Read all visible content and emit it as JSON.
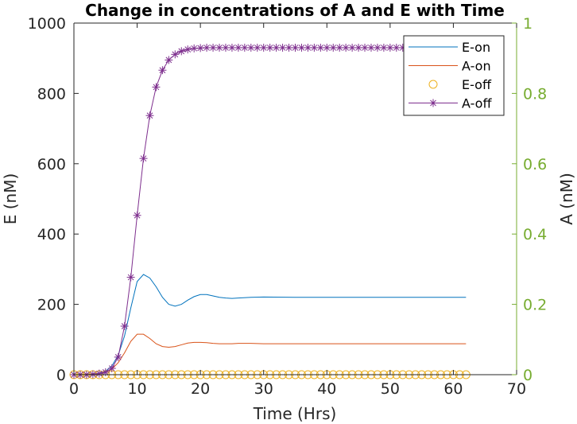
{
  "chart_data": {
    "type": "line",
    "title": "Change in concentrations of A and E with Time",
    "xlabel": "Time (Hrs)",
    "ylabel_left": "E (nM)",
    "ylabel_right": "A (nM)",
    "xlim": [
      0,
      70
    ],
    "ylim_left": [
      0,
      1000
    ],
    "ylim_right": [
      0,
      1
    ],
    "x_ticks": [
      "0",
      "10",
      "20",
      "30",
      "40",
      "50",
      "60",
      "70"
    ],
    "y_ticks_left": [
      "0",
      "200",
      "400",
      "600",
      "800",
      "1000"
    ],
    "y_ticks_right": [
      "0",
      "0.2",
      "0.4",
      "0.6",
      "0.8",
      "1"
    ],
    "grid": false,
    "legend_position": "top-right",
    "colors": {
      "E-on": "#0072BD",
      "A-on": "#D95319",
      "E-off": "#EDB120",
      "A-off": "#7E2F8E",
      "right_axis": "#77AC30"
    },
    "series": [
      {
        "name": "E-on",
        "axis": "left",
        "marker": "none",
        "x": [
          0,
          2,
          4,
          5,
          6,
          7,
          8,
          9,
          10,
          11,
          12,
          13,
          14,
          15,
          16,
          17,
          18,
          19,
          20,
          21,
          22,
          23,
          24,
          25,
          26,
          28,
          30,
          35,
          40,
          45,
          50,
          55,
          60,
          62
        ],
        "y": [
          0,
          1,
          4,
          10,
          25,
          55,
          110,
          190,
          265,
          285,
          275,
          250,
          220,
          200,
          195,
          200,
          212,
          222,
          228,
          228,
          224,
          220,
          218,
          217,
          218,
          220,
          221,
          220,
          220,
          220,
          220,
          220,
          220,
          220
        ]
      },
      {
        "name": "A-on",
        "axis": "left",
        "marker": "none",
        "x": [
          0,
          2,
          4,
          5,
          6,
          7,
          8,
          9,
          10,
          11,
          12,
          13,
          14,
          15,
          16,
          17,
          18,
          19,
          20,
          21,
          22,
          23,
          24,
          25,
          26,
          28,
          30,
          35,
          40,
          45,
          50,
          55,
          60,
          62
        ],
        "y": [
          0,
          1,
          3,
          7,
          16,
          34,
          62,
          95,
          115,
          115,
          103,
          88,
          80,
          78,
          80,
          85,
          90,
          92,
          92,
          91,
          89,
          88,
          88,
          88,
          89,
          89,
          88,
          88,
          88,
          88,
          88,
          88,
          88,
          88
        ]
      },
      {
        "name": "E-off",
        "axis": "left",
        "marker": "circle",
        "x": [
          0,
          1,
          2,
          3,
          4,
          5,
          6,
          7,
          8,
          9,
          10,
          11,
          12,
          13,
          14,
          15,
          16,
          17,
          18,
          19,
          20,
          21,
          22,
          23,
          24,
          25,
          26,
          27,
          28,
          29,
          30,
          31,
          32,
          33,
          34,
          35,
          36,
          37,
          38,
          39,
          40,
          41,
          42,
          43,
          44,
          45,
          46,
          47,
          48,
          49,
          50,
          51,
          52,
          53,
          54,
          55,
          56,
          57,
          58,
          59,
          60,
          61,
          62
        ],
        "y": [
          0,
          0,
          0,
          0,
          0,
          0,
          0,
          0,
          0,
          0,
          0,
          0,
          0,
          0,
          0,
          0,
          0,
          0,
          0,
          0,
          0,
          0,
          0,
          0,
          0,
          0,
          0,
          0,
          0,
          0,
          0,
          0,
          0,
          0,
          0,
          0,
          0,
          0,
          0,
          0,
          0,
          0,
          0,
          0,
          0,
          0,
          0,
          0,
          0,
          0,
          0,
          0,
          0,
          0,
          0,
          0,
          0,
          0,
          0,
          0,
          0,
          0,
          0
        ]
      },
      {
        "name": "A-off",
        "axis": "right",
        "marker": "asterisk",
        "x": [
          0,
          1,
          2,
          3,
          4,
          5,
          6,
          7,
          8,
          9,
          10,
          11,
          12,
          13,
          14,
          15,
          16,
          17,
          18,
          19,
          20,
          21,
          22,
          23,
          24,
          25,
          26,
          27,
          28,
          29,
          30,
          31,
          32,
          33,
          34,
          35,
          36,
          37,
          38,
          39,
          40,
          41,
          42,
          43,
          44,
          45,
          46,
          47,
          48,
          49,
          50,
          51,
          52,
          53,
          54,
          55,
          56,
          57,
          58,
          59,
          60,
          61,
          62
        ],
        "y": [
          0,
          0,
          0,
          0.001,
          0.003,
          0.007,
          0.018,
          0.05,
          0.138,
          0.277,
          0.453,
          0.615,
          0.737,
          0.818,
          0.866,
          0.895,
          0.911,
          0.92,
          0.925,
          0.928,
          0.929,
          0.93,
          0.93,
          0.93,
          0.93,
          0.93,
          0.93,
          0.93,
          0.93,
          0.93,
          0.93,
          0.93,
          0.93,
          0.93,
          0.93,
          0.93,
          0.93,
          0.93,
          0.93,
          0.93,
          0.93,
          0.93,
          0.93,
          0.93,
          0.93,
          0.93,
          0.93,
          0.93,
          0.93,
          0.93,
          0.93,
          0.93,
          0.93,
          0.93,
          0.93,
          0.93,
          0.93,
          0.93,
          0.93,
          0.93,
          0.93,
          0.93,
          0.93
        ]
      }
    ]
  }
}
